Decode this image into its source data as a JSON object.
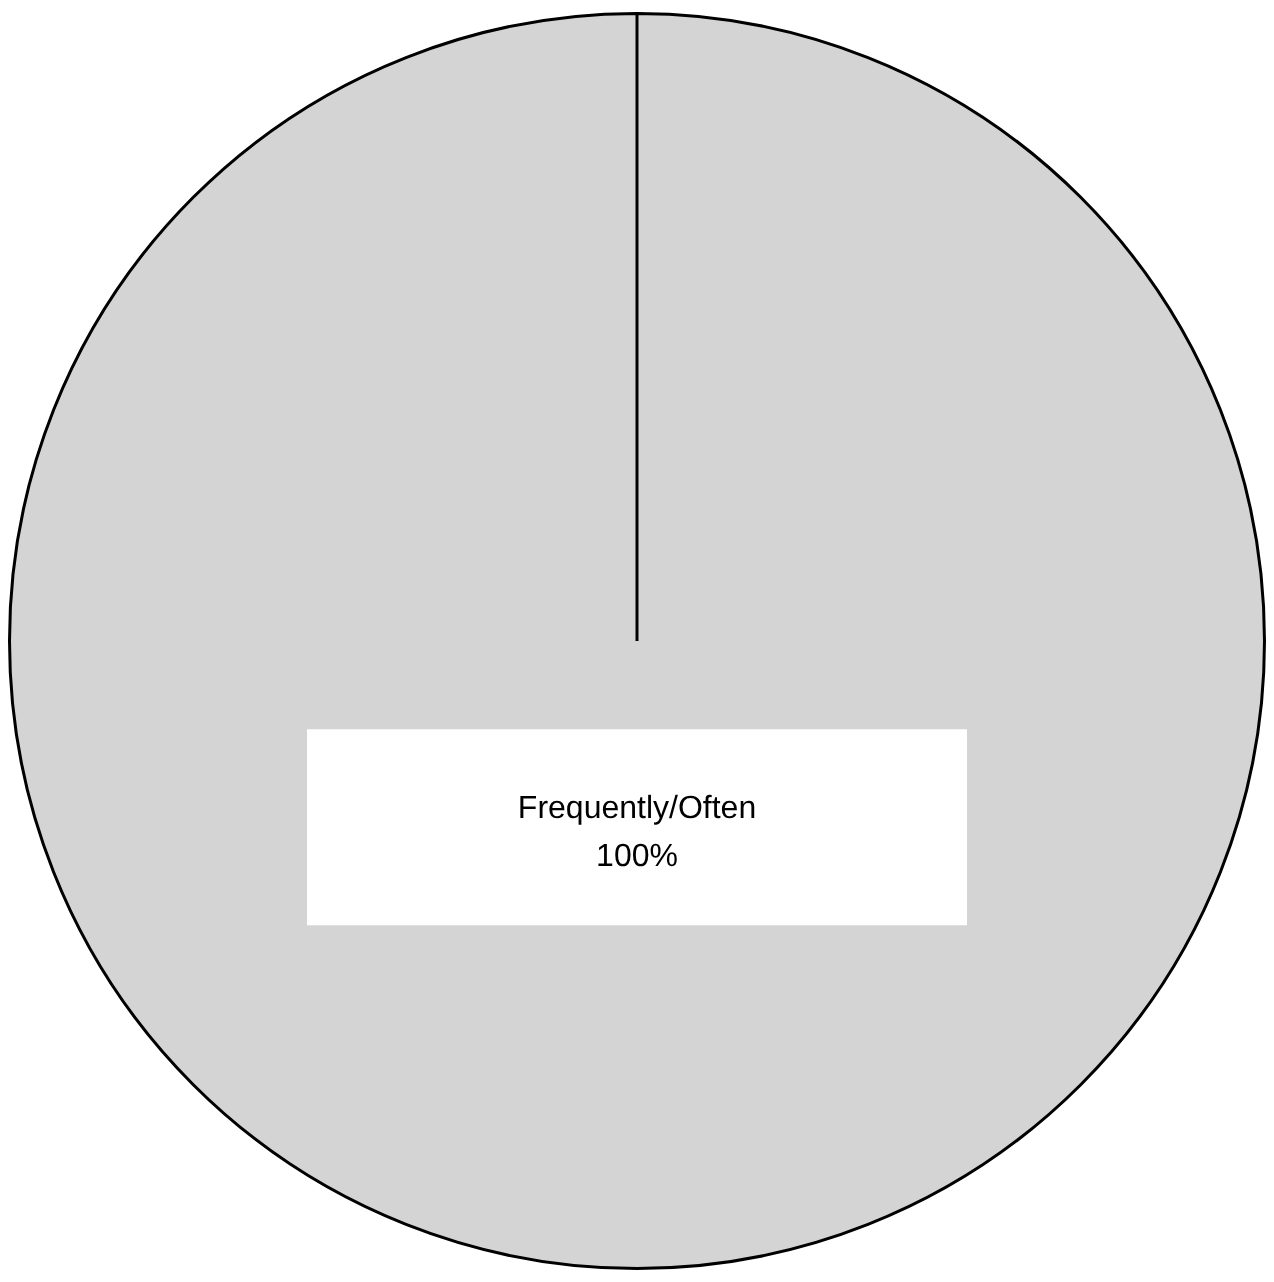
{
  "chart_data": {
    "type": "pie",
    "categories": [
      "Frequently/Often"
    ],
    "values": [
      100
    ],
    "colors": [
      "#d4d4d4"
    ],
    "value_labels": [
      "100%"
    ],
    "legend": false
  }
}
